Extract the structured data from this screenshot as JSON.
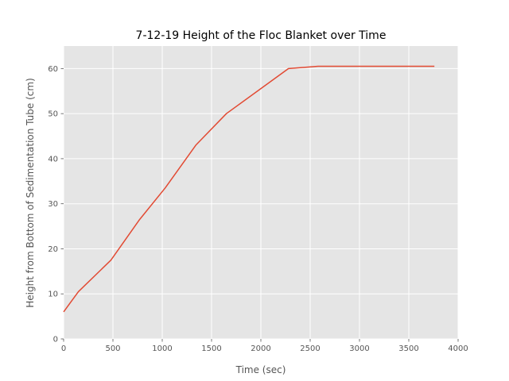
{
  "chart_data": {
    "type": "line",
    "title": "7-12-19 Height of the Floc Blanket over Time",
    "xlabel": "Time (sec)",
    "ylabel": "Height from Bottom of Sedimentation Tube (cm)",
    "xlim": [
      0,
      4000
    ],
    "ylim": [
      0,
      65
    ],
    "x_ticks": [
      0,
      500,
      1000,
      1500,
      2000,
      2500,
      3000,
      3500,
      4000
    ],
    "y_ticks": [
      0,
      10,
      20,
      30,
      40,
      50,
      60
    ],
    "grid": true,
    "style": "ggplot",
    "colors": {
      "background": "#E5E5E5",
      "grid": "#FFFFFF",
      "line": "#E24A33",
      "tick_text": "#555555",
      "title_text": "#000000"
    },
    "series": [
      {
        "x": [
          0,
          150,
          480,
          770,
          1030,
          1340,
          1650,
          2280,
          2580,
          3000,
          3500,
          3760
        ],
        "y": [
          6,
          10.5,
          17.5,
          26.5,
          33.5,
          43,
          50,
          60,
          60.5,
          60.5,
          60.5,
          60.5
        ]
      }
    ]
  }
}
